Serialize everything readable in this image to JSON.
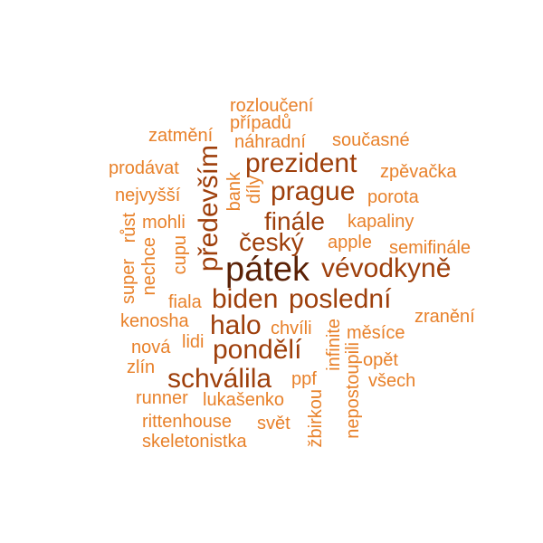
{
  "palette": {
    "darkest": "#5a2106",
    "dark": "#9e3f0b",
    "medium": "#c45a12",
    "light": "#e8812a",
    "lightest": "#f0a040"
  },
  "words": [
    {
      "id": "patek",
      "text": "pátek",
      "weight": 10,
      "color": "#5a2106"
    },
    {
      "id": "vevodkyne",
      "text": "vévodkyně",
      "weight": 7,
      "color": "#9e3f0b"
    },
    {
      "id": "predevsim",
      "text": "především",
      "weight": 7,
      "color": "#9e3f0b"
    },
    {
      "id": "prezident",
      "text": "prezident",
      "weight": 7,
      "color": "#9e3f0b"
    },
    {
      "id": "prague",
      "text": "prague",
      "weight": 7,
      "color": "#9e3f0b"
    },
    {
      "id": "posledni",
      "text": "poslední",
      "weight": 7,
      "color": "#9e3f0b"
    },
    {
      "id": "biden",
      "text": "biden",
      "weight": 7,
      "color": "#9e3f0b"
    },
    {
      "id": "halo",
      "text": "halo",
      "weight": 7,
      "color": "#9e3f0b"
    },
    {
      "id": "pondeli",
      "text": "pondělí",
      "weight": 7,
      "color": "#9e3f0b"
    },
    {
      "id": "schvalila",
      "text": "schválila",
      "weight": 7,
      "color": "#9e3f0b"
    },
    {
      "id": "finale",
      "text": "finále",
      "weight": 6,
      "color": "#9e3f0b"
    },
    {
      "id": "cesky",
      "text": "český",
      "weight": 6,
      "color": "#9e3f0b"
    },
    {
      "id": "rozlouceni",
      "text": "rozloučení",
      "weight": 3,
      "color": "#e8812a"
    },
    {
      "id": "pripadu",
      "text": "případů",
      "weight": 3,
      "color": "#e8812a"
    },
    {
      "id": "zatmeni",
      "text": "zatmění",
      "weight": 3,
      "color": "#e8812a"
    },
    {
      "id": "nahradni",
      "text": "náhradní",
      "weight": 3,
      "color": "#e8812a"
    },
    {
      "id": "soucasne",
      "text": "současné",
      "weight": 3,
      "color": "#e8812a"
    },
    {
      "id": "prodavat",
      "text": "prodávat",
      "weight": 3,
      "color": "#e8812a"
    },
    {
      "id": "zpevacka",
      "text": "zpěvačka",
      "weight": 3,
      "color": "#e8812a"
    },
    {
      "id": "nejvyssi",
      "text": "nejvyšší",
      "weight": 3,
      "color": "#e8812a"
    },
    {
      "id": "porota",
      "text": "porota",
      "weight": 3,
      "color": "#e8812a"
    },
    {
      "id": "bank",
      "text": "bank",
      "weight": 3,
      "color": "#e8812a"
    },
    {
      "id": "dily",
      "text": "díly",
      "weight": 3,
      "color": "#e8812a"
    },
    {
      "id": "mohli",
      "text": "mohli",
      "weight": 3,
      "color": "#e8812a"
    },
    {
      "id": "rust",
      "text": "růst",
      "weight": 3,
      "color": "#e8812a"
    },
    {
      "id": "kapaliny",
      "text": "kapaliny",
      "weight": 3,
      "color": "#e8812a"
    },
    {
      "id": "apple",
      "text": "apple",
      "weight": 3,
      "color": "#e8812a"
    },
    {
      "id": "semifinale",
      "text": "semifinále",
      "weight": 3,
      "color": "#e8812a"
    },
    {
      "id": "cupu",
      "text": "cupu",
      "weight": 3,
      "color": "#e8812a"
    },
    {
      "id": "nechce",
      "text": "nechce",
      "weight": 3,
      "color": "#e8812a"
    },
    {
      "id": "super",
      "text": "super",
      "weight": 3,
      "color": "#e8812a"
    },
    {
      "id": "fiala",
      "text": "fiala",
      "weight": 3,
      "color": "#e8812a"
    },
    {
      "id": "kenosha",
      "text": "kenosha",
      "weight": 3,
      "color": "#e8812a"
    },
    {
      "id": "zraneni",
      "text": "zranění",
      "weight": 3,
      "color": "#e8812a"
    },
    {
      "id": "chvili",
      "text": "chvíli",
      "weight": 3,
      "color": "#e8812a"
    },
    {
      "id": "mesice",
      "text": "měsíce",
      "weight": 3,
      "color": "#e8812a"
    },
    {
      "id": "nova",
      "text": "nová",
      "weight": 3,
      "color": "#e8812a"
    },
    {
      "id": "lidi",
      "text": "lidi",
      "weight": 3,
      "color": "#e8812a"
    },
    {
      "id": "infinite",
      "text": "infinite",
      "weight": 3,
      "color": "#e8812a"
    },
    {
      "id": "opet",
      "text": "opět",
      "weight": 3,
      "color": "#e8812a"
    },
    {
      "id": "zlin",
      "text": "zlín",
      "weight": 3,
      "color": "#e8812a"
    },
    {
      "id": "ppf",
      "text": "ppf",
      "weight": 3,
      "color": "#e8812a"
    },
    {
      "id": "vsech",
      "text": "všech",
      "weight": 3,
      "color": "#e8812a"
    },
    {
      "id": "runner",
      "text": "runner",
      "weight": 3,
      "color": "#e8812a"
    },
    {
      "id": "lukasenko",
      "text": "lukašenko",
      "weight": 3,
      "color": "#e8812a"
    },
    {
      "id": "zbirkou",
      "text": "žbirkou",
      "weight": 3,
      "color": "#e8812a"
    },
    {
      "id": "nepostoupili",
      "text": "nepostoupili",
      "weight": 3,
      "color": "#e8812a"
    },
    {
      "id": "rittenhouse",
      "text": "rittenhouse",
      "weight": 3,
      "color": "#e8812a"
    },
    {
      "id": "svet",
      "text": "svět",
      "weight": 3,
      "color": "#e8812a"
    },
    {
      "id": "skeletonistka",
      "text": "skeletonistka",
      "weight": 3,
      "color": "#e8812a"
    }
  ]
}
